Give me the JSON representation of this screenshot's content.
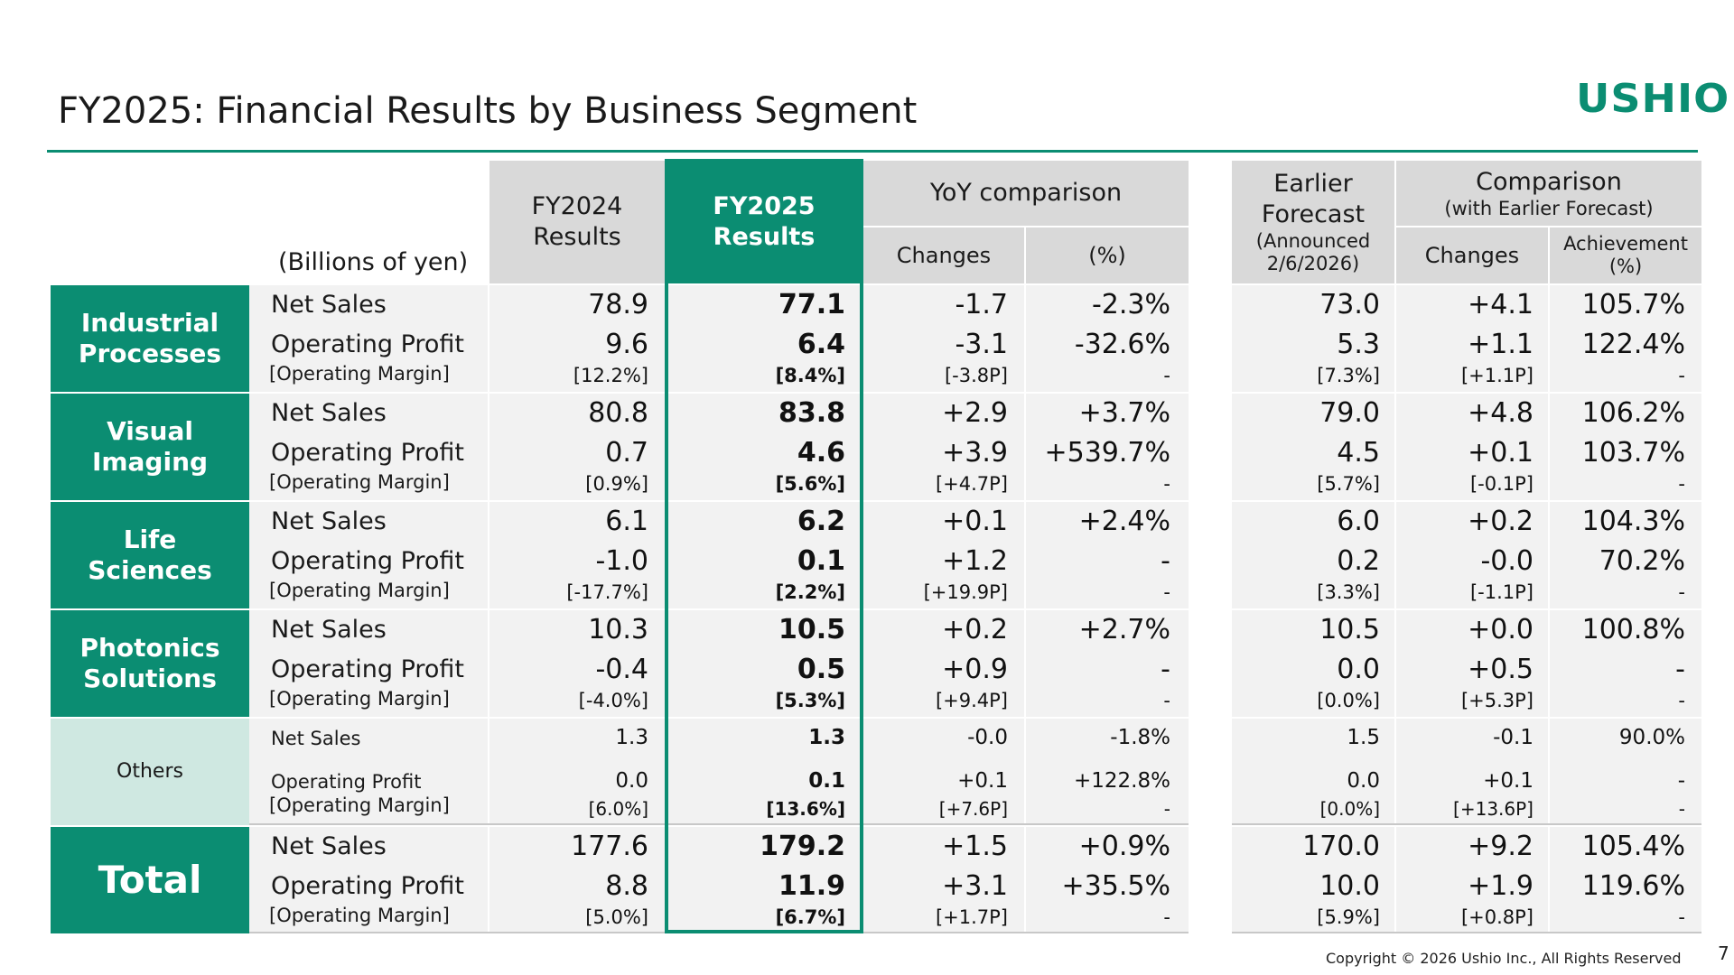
{
  "title": "FY2025: Financial Results by Business Segment",
  "logo": "USHIO",
  "accent_color": "#0b8d72",
  "units": "(Billions of yen)",
  "headers": {
    "fy2024": [
      "FY2024",
      "Results"
    ],
    "fy2025": [
      "FY2025",
      "Results"
    ],
    "yoy": "YoY comparison",
    "yoy_changes": "Changes",
    "yoy_pct": "(%)",
    "earlier": [
      "Earlier",
      "Forecast",
      "(Announced",
      "2/6/2026)"
    ],
    "comparison": "Comparison",
    "comparison_sub": "(with Earlier Forecast)",
    "cmp_changes": "Changes",
    "cmp_achievement": [
      "Achievement",
      "(%)"
    ]
  },
  "labels": {
    "net_sales": "Net Sales",
    "operating_profit": "Operating Profit",
    "operating_margin": "[Operating Margin]"
  },
  "segments": [
    {
      "name": [
        "Industrial",
        "Processes"
      ],
      "net_sales": {
        "fy2024": "78.9",
        "fy2025": "77.1",
        "yoy_change": "-1.7",
        "yoy_pct": "-2.3%",
        "forecast": "73.0",
        "cmp_change": "+4.1",
        "achievement": "105.7%"
      },
      "op_profit": {
        "fy2024": "9.6",
        "fy2025": "6.4",
        "yoy_change": "-3.1",
        "yoy_pct": "-32.6%",
        "forecast": "5.3",
        "cmp_change": "+1.1",
        "achievement": "122.4%"
      },
      "margin": {
        "fy2024": "[12.2%]",
        "fy2025": "[8.4%]",
        "yoy_change": "[-3.8P]",
        "yoy_pct": "-",
        "forecast": "[7.3%]",
        "cmp_change": "[+1.1P]",
        "achievement": "-"
      }
    },
    {
      "name": [
        "Visual",
        "Imaging"
      ],
      "net_sales": {
        "fy2024": "80.8",
        "fy2025": "83.8",
        "yoy_change": "+2.9",
        "yoy_pct": "+3.7%",
        "forecast": "79.0",
        "cmp_change": "+4.8",
        "achievement": "106.2%"
      },
      "op_profit": {
        "fy2024": "0.7",
        "fy2025": "4.6",
        "yoy_change": "+3.9",
        "yoy_pct": "+539.7%",
        "forecast": "4.5",
        "cmp_change": "+0.1",
        "achievement": "103.7%"
      },
      "margin": {
        "fy2024": "[0.9%]",
        "fy2025": "[5.6%]",
        "yoy_change": "[+4.7P]",
        "yoy_pct": "-",
        "forecast": "[5.7%]",
        "cmp_change": "[-0.1P]",
        "achievement": "-"
      }
    },
    {
      "name": [
        "Life",
        "Sciences"
      ],
      "net_sales": {
        "fy2024": "6.1",
        "fy2025": "6.2",
        "yoy_change": "+0.1",
        "yoy_pct": "+2.4%",
        "forecast": "6.0",
        "cmp_change": "+0.2",
        "achievement": "104.3%"
      },
      "op_profit": {
        "fy2024": "-1.0",
        "fy2025": "0.1",
        "yoy_change": "+1.2",
        "yoy_pct": "-",
        "forecast": "0.2",
        "cmp_change": "-0.0",
        "achievement": "70.2%"
      },
      "margin": {
        "fy2024": "[-17.7%]",
        "fy2025": "[2.2%]",
        "yoy_change": "[+19.9P]",
        "yoy_pct": "-",
        "forecast": "[3.3%]",
        "cmp_change": "[-1.1P]",
        "achievement": "-"
      }
    },
    {
      "name": [
        "Photonics",
        "Solutions"
      ],
      "net_sales": {
        "fy2024": "10.3",
        "fy2025": "10.5",
        "yoy_change": "+0.2",
        "yoy_pct": "+2.7%",
        "forecast": "10.5",
        "cmp_change": "+0.0",
        "achievement": "100.8%"
      },
      "op_profit": {
        "fy2024": "-0.4",
        "fy2025": "0.5",
        "yoy_change": "+0.9",
        "yoy_pct": "-",
        "forecast": "0.0",
        "cmp_change": "+0.5",
        "achievement": "-"
      },
      "margin": {
        "fy2024": "[-4.0%]",
        "fy2025": "[5.3%]",
        "yoy_change": "[+9.4P]",
        "yoy_pct": "-",
        "forecast": "[0.0%]",
        "cmp_change": "[+5.3P]",
        "achievement": "-"
      }
    },
    {
      "name": [
        "Others"
      ],
      "net_sales": {
        "fy2024": "1.3",
        "fy2025": "1.3",
        "yoy_change": "-0.0",
        "yoy_pct": "-1.8%",
        "forecast": "1.5",
        "cmp_change": "-0.1",
        "achievement": "90.0%"
      },
      "op_profit": {
        "fy2024": "0.0",
        "fy2025": "0.1",
        "yoy_change": "+0.1",
        "yoy_pct": "+122.8%",
        "forecast": "0.0",
        "cmp_change": "+0.1",
        "achievement": "-"
      },
      "margin": {
        "fy2024": "[6.0%]",
        "fy2025": "[13.6%]",
        "yoy_change": "[+7.6P]",
        "yoy_pct": "-",
        "forecast": "[0.0%]",
        "cmp_change": "[+13.6P]",
        "achievement": "-"
      }
    },
    {
      "name": [
        "Total"
      ],
      "net_sales": {
        "fy2024": "177.6",
        "fy2025": "179.2",
        "yoy_change": "+1.5",
        "yoy_pct": "+0.9%",
        "forecast": "170.0",
        "cmp_change": "+9.2",
        "achievement": "105.4%"
      },
      "op_profit": {
        "fy2024": "8.8",
        "fy2025": "11.9",
        "yoy_change": "+3.1",
        "yoy_pct": "+35.5%",
        "forecast": "10.0",
        "cmp_change": "+1.9",
        "achievement": "119.6%"
      },
      "margin": {
        "fy2024": "[5.0%]",
        "fy2025": "[6.7%]",
        "yoy_change": "[+1.7P]",
        "yoy_pct": "-",
        "forecast": "[5.9%]",
        "cmp_change": "[+0.8P]",
        "achievement": "-"
      }
    }
  ],
  "footer": "Copyright © 2026 Ushio Inc., All Rights Reserved",
  "page_number": "7"
}
